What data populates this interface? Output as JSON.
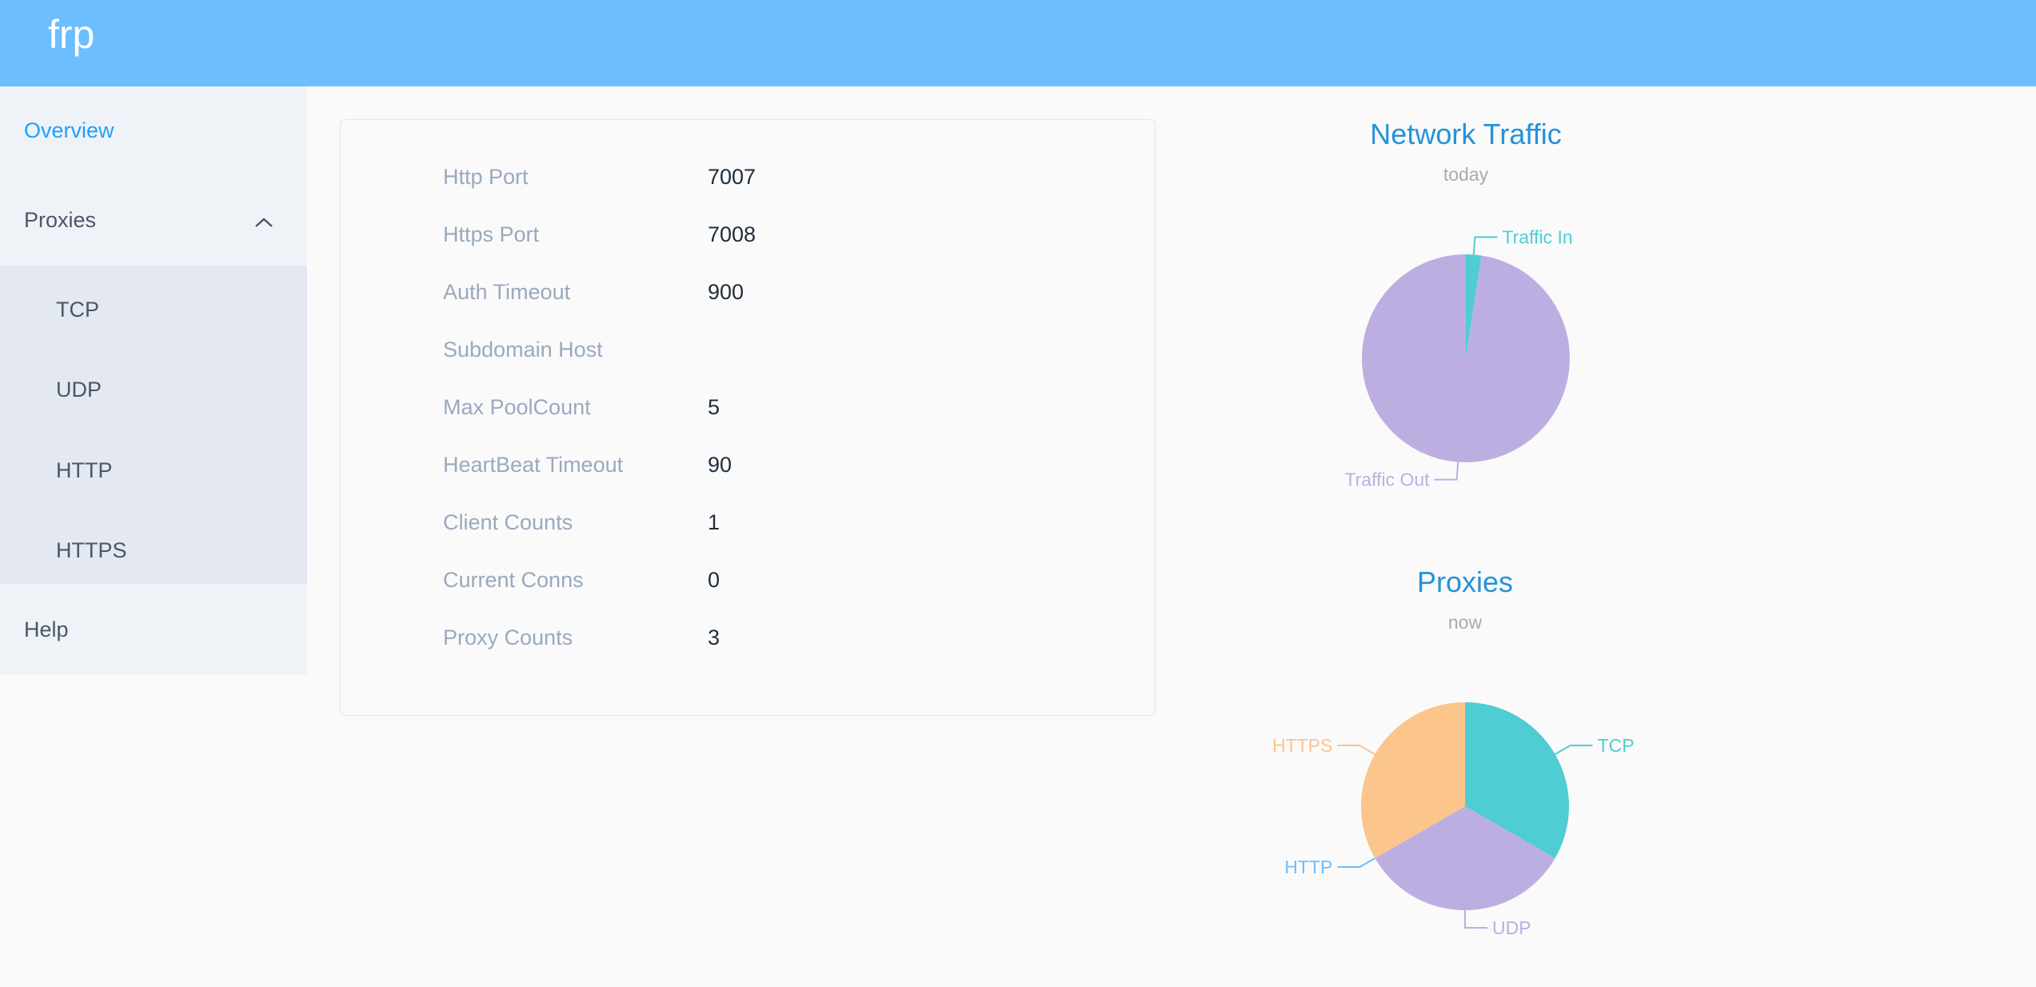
{
  "header": {
    "title": "frp"
  },
  "sidebar": {
    "overview": "Overview",
    "proxies": "Proxies",
    "sub": [
      "TCP",
      "UDP",
      "HTTP",
      "HTTPS"
    ],
    "help": "Help",
    "active_color": "#20a0ff"
  },
  "info": [
    {
      "label": "Http Port",
      "value": "7007"
    },
    {
      "label": "Https Port",
      "value": "7008"
    },
    {
      "label": "Auth Timeout",
      "value": "900"
    },
    {
      "label": "Subdomain Host",
      "value": ""
    },
    {
      "label": "Max PoolCount",
      "value": "5"
    },
    {
      "label": "HeartBeat Timeout",
      "value": "90"
    },
    {
      "label": "Client Counts",
      "value": "1"
    },
    {
      "label": "Current Conns",
      "value": "0"
    },
    {
      "label": "Proxy Counts",
      "value": "3"
    }
  ],
  "chart_data": [
    {
      "type": "pie",
      "title": "Network Traffic",
      "subtitle": "today",
      "categories": [
        "Traffic In",
        "Traffic Out"
      ],
      "values": [
        2.4,
        97.6
      ],
      "colors": [
        "#4ecdd2",
        "#bdaee2"
      ]
    },
    {
      "type": "pie",
      "title": "Proxies",
      "subtitle": "now",
      "categories": [
        "TCP",
        "UDP",
        "HTTP",
        "HTTPS"
      ],
      "values": [
        1,
        1,
        0,
        1
      ],
      "colors": [
        "#4ecdd2",
        "#bdaee2",
        "#6cbefe",
        "#fbc58b"
      ]
    }
  ]
}
